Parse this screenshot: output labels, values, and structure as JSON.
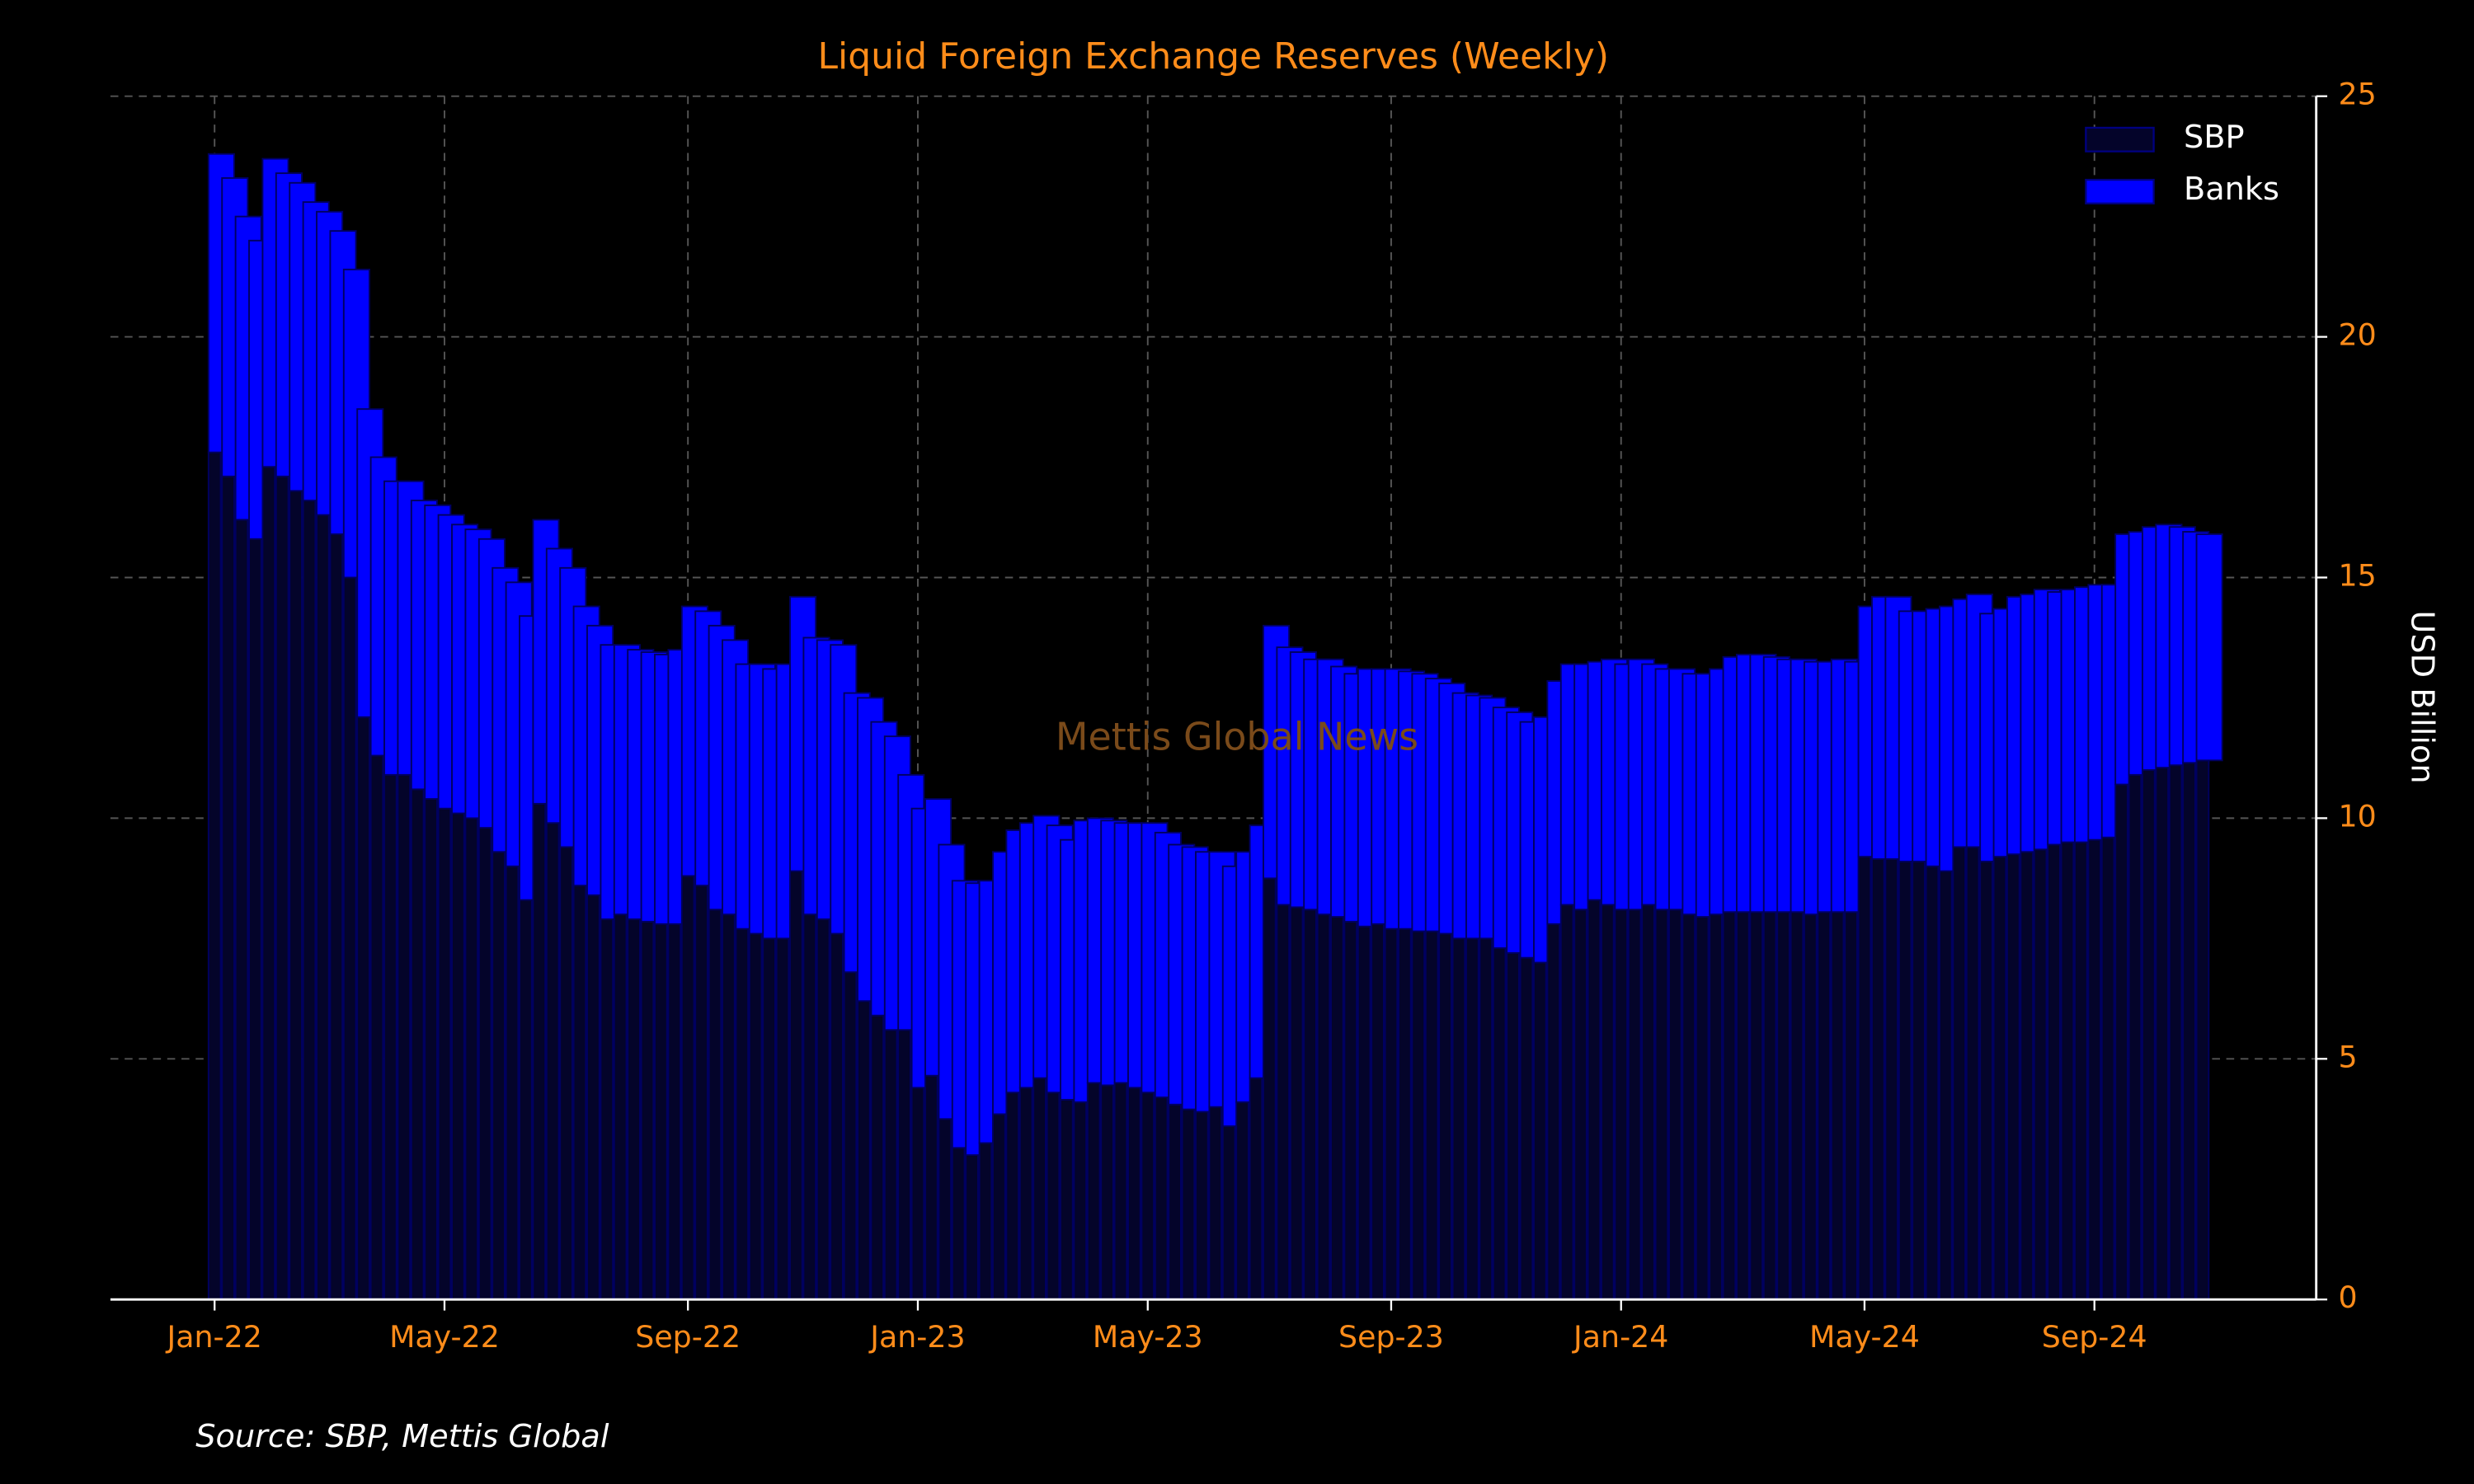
{
  "chart_data": {
    "type": "stacked_bar",
    "title": "Liquid Foreign Exchange Reserves (Weekly)",
    "y_label": "USD Billion",
    "watermark": "Mettis Global News",
    "source": "Source: SBP, Mettis Global",
    "categories": [
      "Jan-22",
      null,
      null,
      null,
      null,
      null,
      null,
      null,
      null,
      null,
      null,
      null,
      null,
      null,
      null,
      null,
      null,
      "May-22",
      null,
      null,
      null,
      null,
      null,
      null,
      null,
      null,
      null,
      null,
      null,
      null,
      null,
      null,
      null,
      null,
      null,
      "Sep-22",
      null,
      null,
      null,
      null,
      null,
      null,
      null,
      null,
      null,
      null,
      null,
      null,
      null,
      null,
      null,
      null,
      "Jan-23",
      null,
      null,
      null,
      null,
      null,
      null,
      null,
      null,
      null,
      null,
      null,
      null,
      null,
      null,
      null,
      null,
      "May-23",
      null,
      null,
      null,
      null,
      null,
      null,
      null,
      null,
      null,
      null,
      null,
      null,
      null,
      null,
      null,
      null,
      null,
      "Sep-23",
      null,
      null,
      null,
      null,
      null,
      null,
      null,
      null,
      null,
      null,
      null,
      null,
      null,
      null,
      null,
      null,
      "Jan-24",
      null,
      null,
      null,
      null,
      null,
      null,
      null,
      null,
      null,
      null,
      null,
      null,
      null,
      null,
      null,
      null,
      null,
      "May-24",
      null,
      null,
      null,
      null,
      null,
      null,
      null,
      null,
      null,
      null,
      null,
      null,
      null,
      null,
      null,
      null,
      "Sep-24",
      null,
      null,
      null,
      null,
      null,
      null,
      null,
      null
    ],
    "series": [
      {
        "name": "SBP",
        "color": "#04042a",
        "values": [
          17.6,
          17.1,
          16.2,
          15.8,
          17.3,
          17.1,
          16.8,
          16.6,
          16.3,
          15.9,
          15.0,
          12.1,
          11.3,
          10.9,
          10.9,
          10.6,
          10.4,
          10.2,
          10.1,
          10.0,
          9.8,
          9.3,
          9.0,
          8.3,
          10.3,
          9.9,
          9.4,
          8.6,
          8.4,
          7.9,
          8.0,
          7.9,
          7.85,
          7.8,
          7.8,
          8.8,
          8.6,
          8.1,
          8.0,
          7.7,
          7.6,
          7.5,
          7.5,
          8.9,
          8.0,
          7.9,
          7.6,
          6.8,
          6.2,
          5.9,
          5.6,
          5.6,
          4.4,
          4.65,
          3.75,
          3.15,
          3.0,
          3.25,
          3.85,
          4.3,
          4.4,
          4.6,
          4.3,
          4.15,
          4.1,
          4.5,
          4.45,
          4.5,
          4.4,
          4.3,
          4.2,
          4.05,
          3.95,
          3.9,
          4.0,
          3.6,
          4.1,
          4.6,
          8.75,
          8.2,
          8.15,
          8.1,
          8.0,
          7.95,
          7.85,
          7.75,
          7.8,
          7.7,
          7.7,
          7.65,
          7.65,
          7.6,
          7.5,
          7.5,
          7.5,
          7.3,
          7.2,
          7.1,
          7.0,
          7.8,
          8.2,
          8.1,
          8.3,
          8.2,
          8.1,
          8.1,
          8.2,
          8.1,
          8.1,
          8.0,
          7.95,
          8.0,
          8.05,
          8.05,
          8.05,
          8.05,
          8.05,
          8.05,
          8.0,
          8.05,
          8.05,
          8.05,
          9.2,
          9.15,
          9.15,
          9.1,
          9.1,
          9.0,
          8.9,
          9.4,
          9.4,
          9.1,
          9.2,
          9.25,
          9.3,
          9.35,
          9.45,
          9.5,
          9.5,
          9.55,
          9.6,
          10.7,
          10.9,
          11.0,
          11.05,
          11.1,
          11.15,
          11.2
        ]
      },
      {
        "name": "Banks",
        "color": "#0000ff",
        "values": [
          6.2,
          6.2,
          6.3,
          6.2,
          6.4,
          6.3,
          6.4,
          6.2,
          6.3,
          6.3,
          6.4,
          6.4,
          6.2,
          6.1,
          6.1,
          6.0,
          6.1,
          6.1,
          6.0,
          6.0,
          6.0,
          5.9,
          5.9,
          5.9,
          5.9,
          5.7,
          5.8,
          5.8,
          5.6,
          5.7,
          5.6,
          5.6,
          5.6,
          5.6,
          5.7,
          5.6,
          5.7,
          5.9,
          5.7,
          5.5,
          5.6,
          5.6,
          5.7,
          5.7,
          5.75,
          5.8,
          6.0,
          5.8,
          6.3,
          6.1,
          6.1,
          5.3,
          5.8,
          5.75,
          5.7,
          5.55,
          5.65,
          5.45,
          5.45,
          5.45,
          5.5,
          5.45,
          5.55,
          5.4,
          5.85,
          5.5,
          5.5,
          5.4,
          5.5,
          5.6,
          5.5,
          5.4,
          5.45,
          5.4,
          5.3,
          5.4,
          5.2,
          5.25,
          5.25,
          5.35,
          5.3,
          5.2,
          5.3,
          5.2,
          5.15,
          5.35,
          5.3,
          5.4,
          5.35,
          5.35,
          5.25,
          5.2,
          5.1,
          5.05,
          5.0,
          5.0,
          5.0,
          4.9,
          5.1,
          5.05,
          5.0,
          5.1,
          4.95,
          5.1,
          5.1,
          5.2,
          5.0,
          5.0,
          5.0,
          5.0,
          5.05,
          5.1,
          5.3,
          5.35,
          5.35,
          5.3,
          5.25,
          5.25,
          5.25,
          5.2,
          5.25,
          5.2,
          5.2,
          5.45,
          5.45,
          5.2,
          5.2,
          5.35,
          5.5,
          5.15,
          5.25,
          5.15,
          5.15,
          5.35,
          5.35,
          5.4,
          5.25,
          5.25,
          5.3,
          5.3,
          5.25,
          5.2,
          5.05,
          5.05,
          5.05,
          4.95,
          4.8,
          4.7
        ]
      }
    ],
    "ylim": [
      0,
      25
    ],
    "yticks": [
      0,
      5,
      10,
      15,
      20,
      25
    ],
    "grid": true,
    "legend": "upper right"
  }
}
